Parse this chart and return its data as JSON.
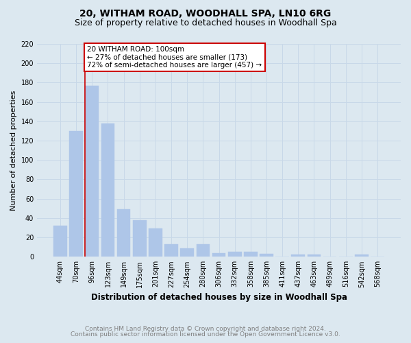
{
  "title": "20, WITHAM ROAD, WOODHALL SPA, LN10 6RG",
  "subtitle": "Size of property relative to detached houses in Woodhall Spa",
  "xlabel": "Distribution of detached houses by size in Woodhall Spa",
  "ylabel": "Number of detached properties",
  "footnote1": "Contains HM Land Registry data © Crown copyright and database right 2024.",
  "footnote2": "Contains public sector information licensed under the Open Government Licence v3.0.",
  "categories": [
    "44sqm",
    "70sqm",
    "96sqm",
    "123sqm",
    "149sqm",
    "175sqm",
    "201sqm",
    "227sqm",
    "254sqm",
    "280sqm",
    "306sqm",
    "332sqm",
    "358sqm",
    "385sqm",
    "411sqm",
    "437sqm",
    "463sqm",
    "489sqm",
    "516sqm",
    "542sqm",
    "568sqm"
  ],
  "values": [
    32,
    130,
    177,
    138,
    49,
    38,
    29,
    13,
    9,
    13,
    4,
    5,
    5,
    3,
    0,
    2,
    2,
    0,
    0,
    2,
    0
  ],
  "bar_color": "#aec6e8",
  "bar_edge_color": "#aec6e8",
  "red_line_index": 2,
  "red_line_color": "#cc0000",
  "annotation_line1": "20 WITHAM ROAD: 100sqm",
  "annotation_line2": "← 27% of detached houses are smaller (173)",
  "annotation_line3": "72% of semi-detached houses are larger (457) →",
  "annotation_box_color": "#ffffff",
  "annotation_box_edge_color": "#cc0000",
  "ylim": [
    0,
    220
  ],
  "yticks": [
    0,
    20,
    40,
    60,
    80,
    100,
    120,
    140,
    160,
    180,
    200,
    220
  ],
  "grid_color": "#c8d8e8",
  "background_color": "#dce8f0",
  "axes_bg_color": "#dce8f0",
  "title_fontsize": 10,
  "subtitle_fontsize": 9,
  "xlabel_fontsize": 8.5,
  "ylabel_fontsize": 8,
  "tick_fontsize": 7,
  "annotation_fontsize": 7.5,
  "footnote_fontsize": 6.5
}
